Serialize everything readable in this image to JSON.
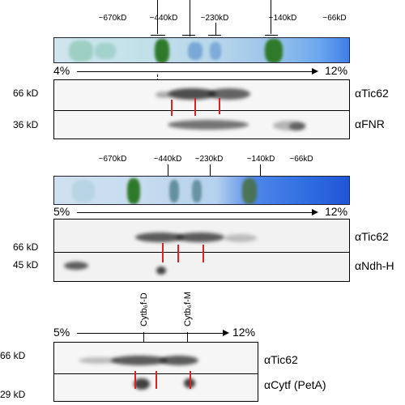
{
  "panel1": {
    "mw_markers": [
      "~670kD",
      "~440kD",
      "~230kD",
      "~140kD",
      "~66kD"
    ],
    "gradient_start": "4%",
    "gradient_end": "12%",
    "rows": [
      {
        "kd": "66 kD",
        "antibody": "αTic62"
      },
      {
        "kd": "36 kD",
        "antibody": "αFNR"
      }
    ]
  },
  "panel2": {
    "mw_markers": [
      "~670kD",
      "~440kD",
      "~230kD",
      "~140kD",
      "~66kD"
    ],
    "gradient_start": "5%",
    "gradient_end": "12%",
    "rows": [
      {
        "kd": "66 kD",
        "antibody": "αTic62"
      },
      {
        "kd": "45 kD",
        "antibody": "αNdh-H"
      }
    ]
  },
  "panel3": {
    "complex_labels": [
      "Cytb₆f-D",
      "Cytb₆f-M"
    ],
    "gradient_start": "5%",
    "gradient_end": "12%",
    "rows": [
      {
        "kd": "66 kD",
        "antibody": "αTic62"
      },
      {
        "kd": "29 kD",
        "antibody": "αCytf (PetA)"
      }
    ]
  },
  "colors": {
    "gel_blue": "#2a5fd0",
    "gel_green": "#2f7a2a",
    "marker_red": "#e02020"
  }
}
